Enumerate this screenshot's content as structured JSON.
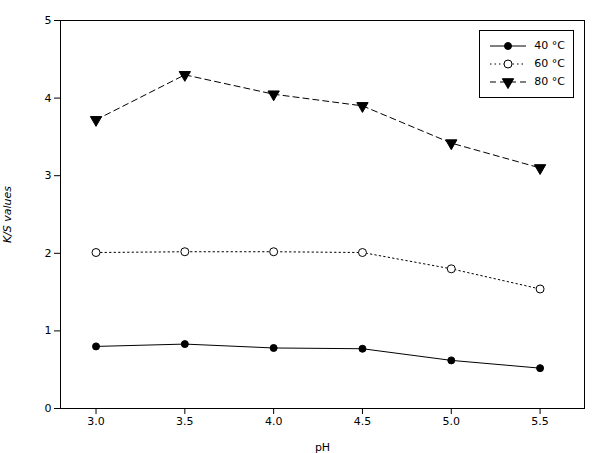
{
  "chart_data": {
    "type": "line",
    "x": [
      3.0,
      3.5,
      4.0,
      4.5,
      5.0,
      5.5
    ],
    "series": [
      {
        "name": "40 °C",
        "color": "black",
        "marker": "circle",
        "line_style": "solid",
        "values": [
          0.8,
          0.83,
          0.78,
          0.77,
          0.62,
          0.52
        ]
      },
      {
        "name": "60 °C",
        "color": "black",
        "marker": "circle-open",
        "line_style": "dotted",
        "values": [
          2.01,
          2.02,
          2.02,
          2.01,
          1.8,
          1.54
        ]
      },
      {
        "name": "80 °C",
        "color": "black",
        "marker": "triangle-down",
        "line_style": "dashed",
        "values": [
          3.72,
          4.3,
          4.05,
          3.9,
          3.42,
          3.1
        ]
      }
    ],
    "xlabel": "pH",
    "ylabel": "K/S values",
    "xlim": [
      2.8,
      5.75
    ],
    "ylim": [
      0,
      5
    ],
    "xticks": [
      {
        "value": 3.0,
        "label": "3.0"
      },
      3.5,
      {
        "value": 4.0,
        "label": "4.0"
      },
      4.5,
      {
        "value": 5.0,
        "label": "5.0"
      },
      5.5
    ],
    "yticks": [
      0,
      1,
      2,
      3,
      4,
      5
    ],
    "legend": "upper right",
    "grid": false
  }
}
